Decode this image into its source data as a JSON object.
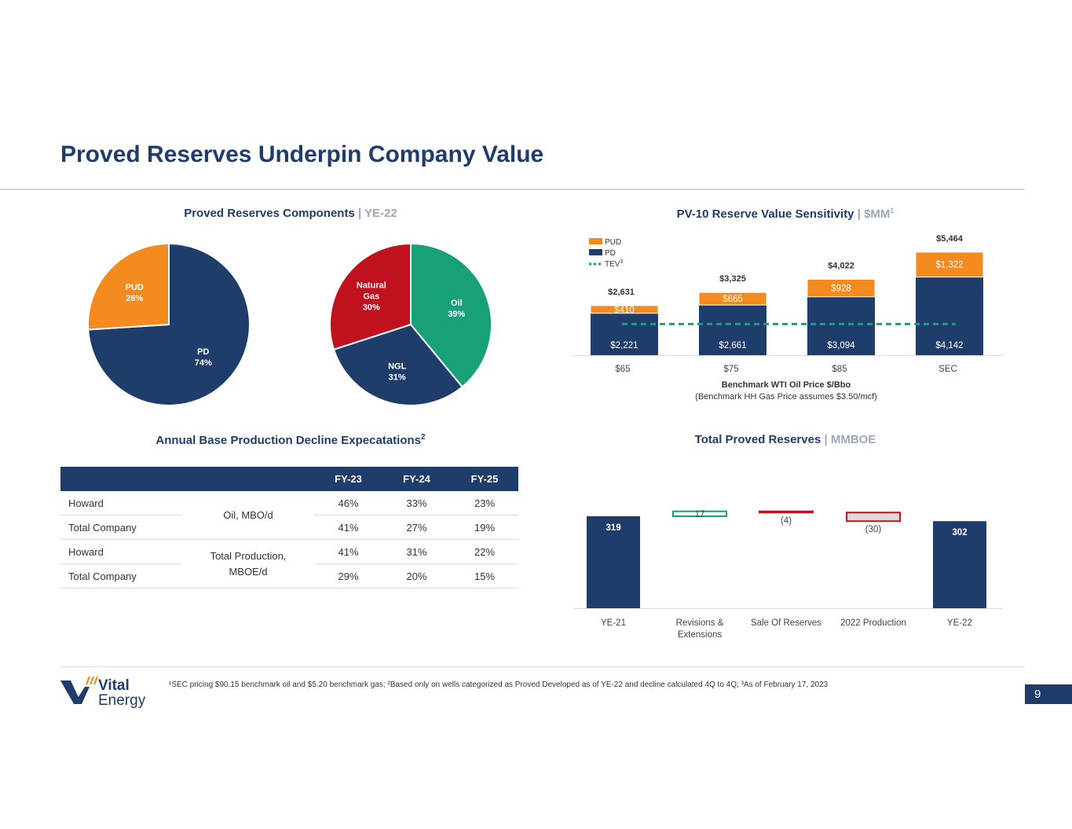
{
  "title": "Proved Reserves Underpin Company Value",
  "pies": {
    "title": "Proved Reserves Components",
    "title_sep": "|",
    "subtitle": "YE-22",
    "reserve_type": [
      {
        "label": "PD",
        "pct": "74%",
        "value": 74,
        "color": "#1f3d6b"
      },
      {
        "label": "PUD",
        "pct": "26%",
        "value": 26,
        "color": "#f58a1f"
      }
    ],
    "commodity": [
      {
        "label": "Oil",
        "pct": "39%",
        "value": 39,
        "color": "#18a078"
      },
      {
        "label": "NGL",
        "pct": "31%",
        "value": 31,
        "color": "#1f3d6b"
      },
      {
        "label_lines": [
          "Natural",
          "Gas"
        ],
        "pct": "30%",
        "value": 30,
        "color": "#c0111f"
      }
    ]
  },
  "pv10": {
    "title": "PV-10 Reserve Value Sensitivity",
    "title_sep": "|",
    "subtitle": "$MM",
    "subtitle_sup": "1",
    "legend": [
      {
        "label": "PUD",
        "color": "#f58a1f"
      },
      {
        "label": "PD",
        "color": "#1f3d6b"
      },
      {
        "label": "TEV",
        "sup": "3",
        "color": "#18a078"
      }
    ],
    "xlabel": "Benchmark WTI Oil Price $/Bbo",
    "xlabel_note": "(Benchmark HH Gas Price assumes $3.50/mcf)"
  },
  "decline": {
    "title": "Annual Base Production Decline Expecatations",
    "title_sup": "2",
    "headers": [
      "FY-23",
      "FY-24",
      "FY-25"
    ],
    "rows": [
      {
        "name": "Howard",
        "values": [
          "46%",
          "33%",
          "23%"
        ]
      },
      {
        "name": "Total Company",
        "values": [
          "41%",
          "27%",
          "19%"
        ]
      },
      {
        "name": "Howard",
        "values": [
          "41%",
          "31%",
          "22%"
        ]
      },
      {
        "name": "Total Company",
        "values": [
          "29%",
          "20%",
          "15%"
        ]
      }
    ],
    "unit_oil": "Oil, MBO/d",
    "unit_total": "Total Production, MBOE/d"
  },
  "reserves": {
    "title": "Total Proved Reserves",
    "title_sep": "|",
    "subtitle": "MMBOE"
  },
  "chart_data": [
    {
      "type": "pie",
      "title": "Proved Reserves Components | YE-22",
      "labels": [
        "PD",
        "PUD"
      ],
      "values": [
        74,
        26
      ]
    },
    {
      "type": "pie",
      "title": "Proved Reserves Components | YE-22",
      "labels": [
        "Oil",
        "NGL",
        "Natural Gas"
      ],
      "values": [
        39,
        31,
        30
      ]
    },
    {
      "type": "bar",
      "stacked": true,
      "title": "PV-10 Reserve Value Sensitivity | $MM",
      "categories": [
        "$65",
        "$75",
        "$85",
        "SEC"
      ],
      "series": [
        {
          "name": "PD",
          "values": [
            2221,
            2661,
            3094,
            4142
          ],
          "labels": [
            "$2,221",
            "$2,661",
            "$3,094",
            "$4,142"
          ]
        },
        {
          "name": "PUD",
          "values": [
            410,
            665,
            928,
            1322
          ],
          "labels": [
            "$410",
            "$665",
            "$928",
            "$1,322"
          ]
        }
      ],
      "totals": [
        2631,
        3325,
        4022,
        5464
      ],
      "total_labels": [
        "$2,631",
        "$3,325",
        "$4,022",
        "$5,464"
      ],
      "tev": 1650,
      "xlabel": "Benchmark WTI Oil Price $/Bbo",
      "ylim": [
        0,
        5500
      ]
    },
    {
      "type": "bar",
      "waterfall": true,
      "title": "Total Proved Reserves | MMBOE",
      "categories": [
        "YE-21",
        "Revisions & Extensions",
        "Sale Of Reserves",
        "2022 Production",
        "YE-22"
      ],
      "category_lines": [
        [
          "YE-21"
        ],
        [
          "Revisions &",
          "Extensions"
        ],
        [
          "Sale Of Reserves"
        ],
        [
          "2022 Production"
        ],
        [
          "YE-22"
        ]
      ],
      "values": [
        319,
        17,
        -4,
        -30,
        302
      ],
      "labels": [
        "319",
        "17",
        "(4)",
        "(30)",
        "302"
      ],
      "kinds": [
        "total",
        "delta",
        "delta",
        "delta",
        "total"
      ],
      "ylim": [
        0,
        350
      ]
    }
  ],
  "footer": {
    "logo_text_1": "Vital",
    "logo_text_2": "Energy",
    "footnote": "¹SEC pricing $90.15 benchmark oil and $5.20 benchmark gas; ²Based only on wells categorized as Proved Developed as of YE-22 and decline calculated 4Q to 4Q; ³As of February 17, 2023",
    "page_number": "9"
  },
  "colors": {
    "navy": "#1f3d6b",
    "orange": "#f58a1f",
    "green": "#18a078",
    "red": "#c0111f",
    "gray_box": "#d9dadc"
  }
}
